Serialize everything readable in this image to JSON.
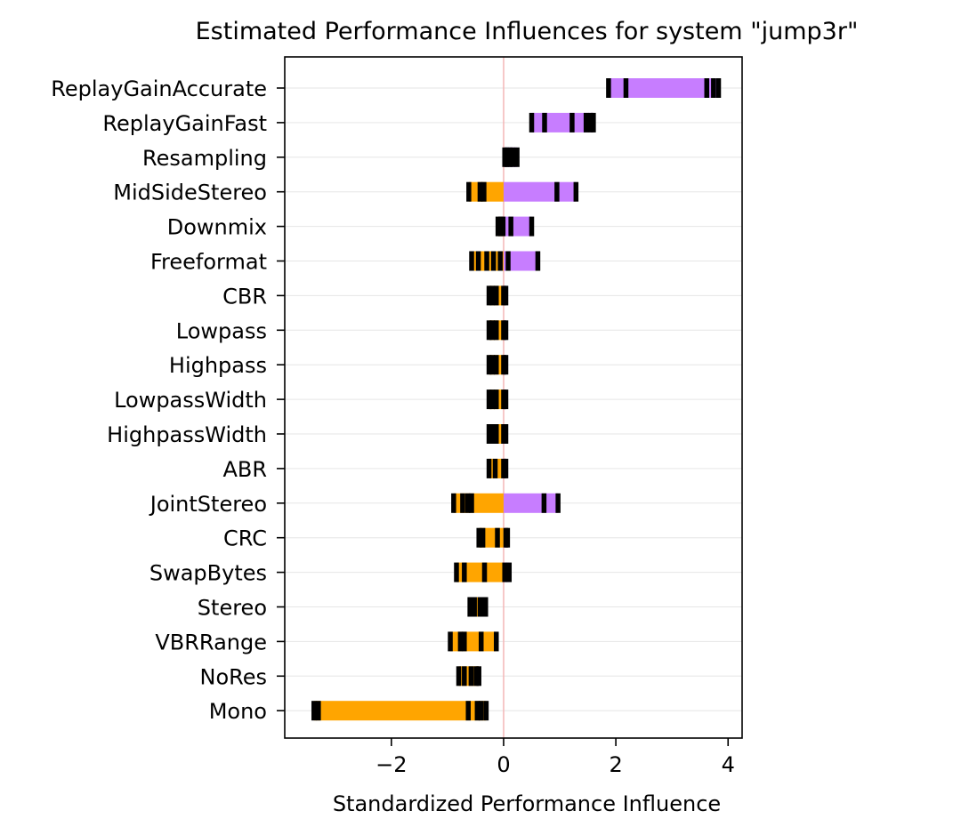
{
  "chart_data": {
    "type": "bar",
    "orientation": "horizontal",
    "title": "Estimated Performance Influences for system \"jump3r\"",
    "xlabel": "Standardized Performance Influence",
    "ylabel": "",
    "xlim": [
      -3.9,
      4.25
    ],
    "xticks": [
      -2,
      0,
      2,
      4
    ],
    "xtick_labels": [
      "−2",
      "0",
      "2",
      "4"
    ],
    "grid": "horizontal",
    "colors": {
      "positive": "#c77dff",
      "negative": "#ffa500",
      "marker": "#000000",
      "zero_line": "#f4b6b6",
      "grid": "#e6e6e6"
    },
    "categories": [
      "ReplayGainAccurate",
      "ReplayGainFast",
      "Resampling",
      "MidSideStereo",
      "Downmix",
      "Freeformat",
      "CBR",
      "Lowpass",
      "Highpass",
      "LowpassWidth",
      "HighpassWidth",
      "ABR",
      "JointStereo",
      "CRC",
      "SwapBytes",
      "Stereo",
      "VBRRange",
      "NoRes",
      "Mono"
    ],
    "bars": [
      {
        "min": 1.87,
        "max": 3.83,
        "markers": [
          1.87,
          2.18,
          3.62,
          3.74,
          3.83
        ]
      },
      {
        "min": 0.5,
        "max": 1.6,
        "markers": [
          0.5,
          0.73,
          1.22,
          1.47,
          1.55,
          1.6
        ]
      },
      {
        "min": 0.02,
        "max": 0.24,
        "markers": [
          0.02,
          0.06,
          0.11,
          0.16,
          0.24
        ]
      },
      {
        "min": -0.62,
        "max": 1.29,
        "markers": [
          -0.62,
          -0.42,
          -0.35,
          0.95,
          1.29
        ]
      },
      {
        "min": -0.1,
        "max": 0.5,
        "markers": [
          -0.1,
          -0.05,
          -0.01,
          0.13,
          0.5
        ]
      },
      {
        "min": -0.57,
        "max": 0.61,
        "markers": [
          -0.57,
          -0.45,
          -0.3,
          -0.18,
          -0.06,
          0.08,
          0.61
        ]
      },
      {
        "min": -0.26,
        "max": 0.04,
        "markers": [
          -0.26,
          -0.2,
          -0.13,
          0.0,
          0.04
        ]
      },
      {
        "min": -0.26,
        "max": 0.04,
        "markers": [
          -0.26,
          -0.2,
          -0.13,
          0.0,
          0.04
        ]
      },
      {
        "min": -0.26,
        "max": 0.04,
        "markers": [
          -0.26,
          -0.2,
          -0.13,
          0.0,
          0.04
        ]
      },
      {
        "min": -0.26,
        "max": 0.04,
        "markers": [
          -0.26,
          -0.2,
          -0.13,
          0.0,
          0.04
        ]
      },
      {
        "min": -0.26,
        "max": 0.04,
        "markers": [
          -0.26,
          -0.2,
          -0.13,
          0.0,
          0.04
        ]
      },
      {
        "min": -0.26,
        "max": 0.04,
        "markers": [
          -0.26,
          -0.15,
          0.0,
          0.04
        ]
      },
      {
        "min": -0.89,
        "max": 0.97,
        "markers": [
          -0.89,
          -0.73,
          -0.64,
          -0.57,
          0.72,
          0.97
        ]
      },
      {
        "min": -0.44,
        "max": 0.07,
        "markers": [
          -0.44,
          -0.37,
          -0.11,
          0.04,
          0.07
        ]
      },
      {
        "min": -0.84,
        "max": 0.1,
        "markers": [
          -0.84,
          -0.7,
          -0.34,
          0.02,
          0.1
        ]
      },
      {
        "min": -0.6,
        "max": -0.32,
        "markers": [
          -0.6,
          -0.52,
          -0.42,
          -0.36,
          -0.32
        ]
      },
      {
        "min": -0.95,
        "max": -0.13,
        "markers": [
          -0.95,
          -0.77,
          -0.7,
          -0.4,
          -0.13
        ]
      },
      {
        "min": -0.8,
        "max": -0.44,
        "markers": [
          -0.8,
          -0.7,
          -0.58,
          -0.49,
          -0.44
        ]
      },
      {
        "min": -3.38,
        "max": -0.31,
        "markers": [
          -3.38,
          -3.3,
          -0.63,
          -0.47,
          -0.4,
          -0.31
        ]
      }
    ]
  }
}
